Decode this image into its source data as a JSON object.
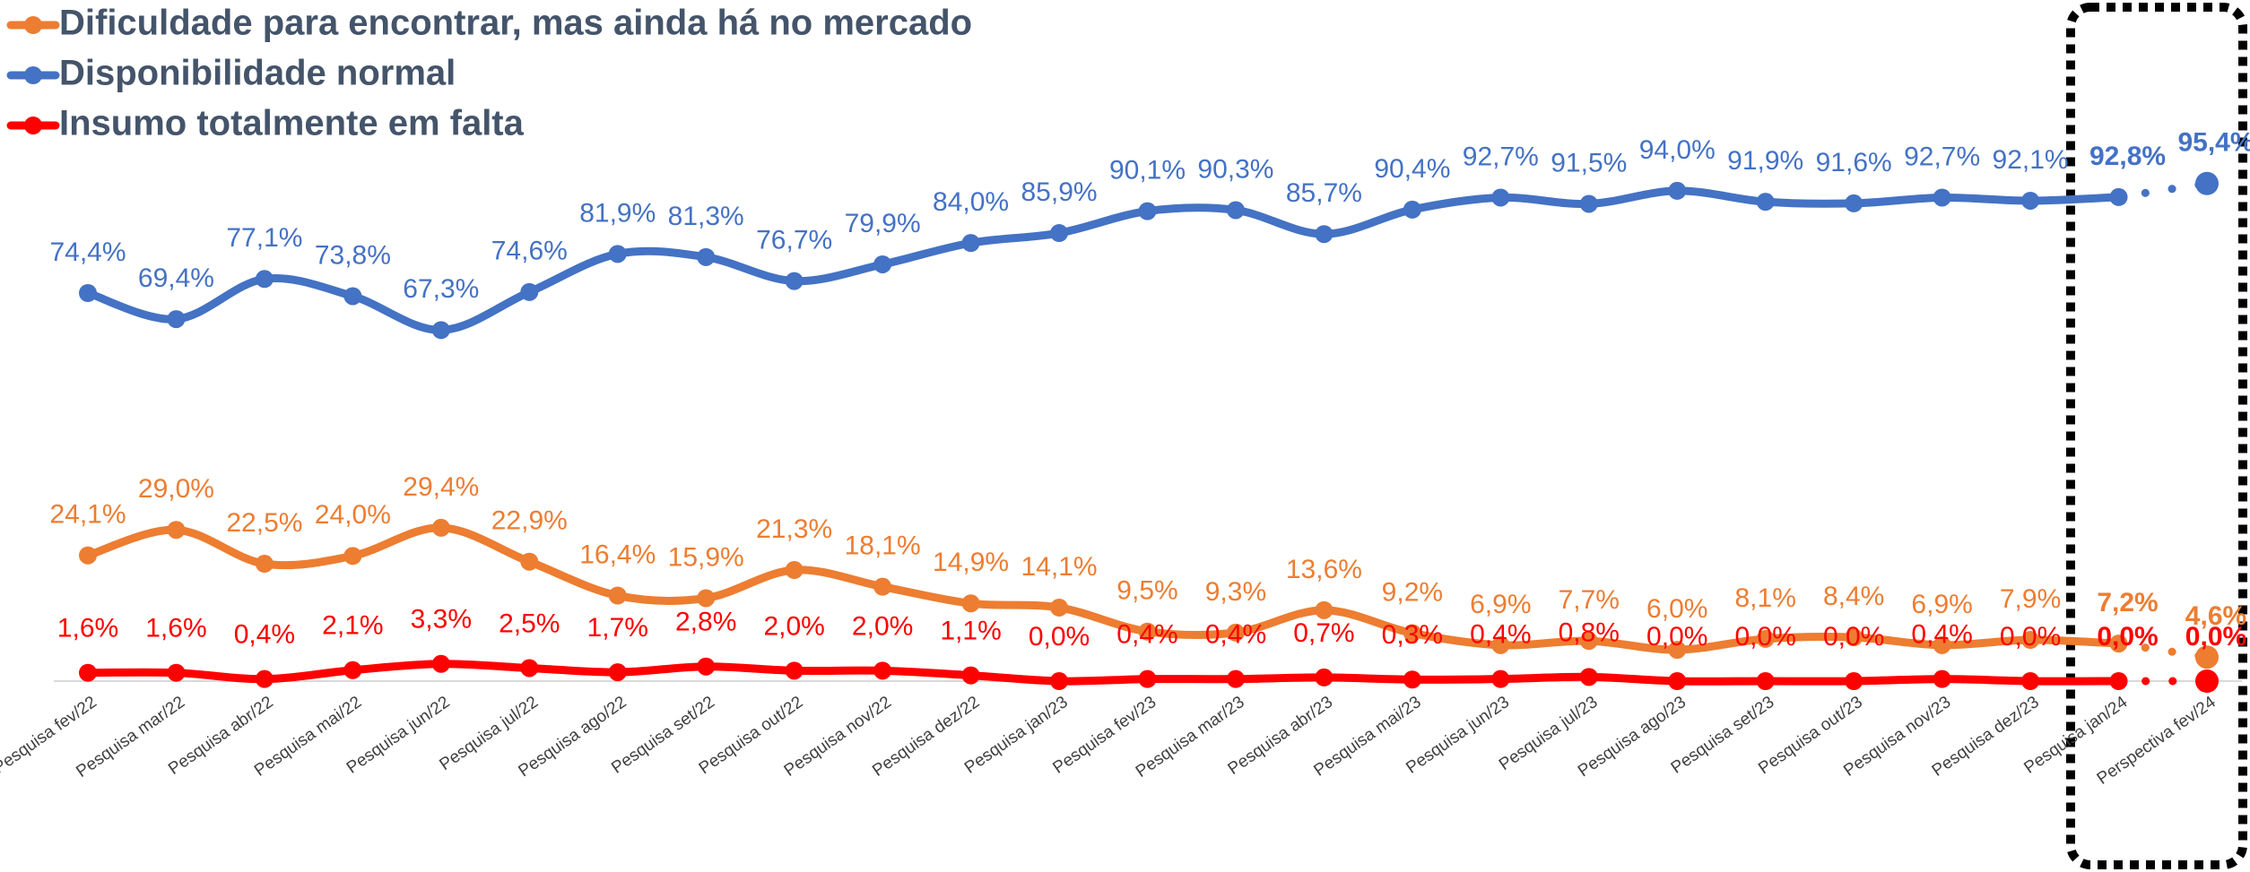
{
  "chart_data": {
    "type": "line",
    "categories": [
      "Pesquisa fev/22",
      "Pesquisa mar/22",
      "Pesquisa abr/22",
      "Pesquisa mai/22",
      "Pesquisa jun/22",
      "Pesquisa jul/22",
      "Pesquisa ago/22",
      "Pesquisa set/22",
      "Pesquisa out/22",
      "Pesquisa nov/22",
      "Pesquisa dez/22",
      "Pesquisa jan/23",
      "Pesquisa fev/23",
      "Pesquisa mar/23",
      "Pesquisa abr/23",
      "Pesquisa mai/23",
      "Pesquisa jun/23",
      "Pesquisa jul/23",
      "Pesquisa ago/23",
      "Pesquisa set/23",
      "Pesquisa out/23",
      "Pesquisa nov/23",
      "Pesquisa dez/23",
      "Pesquisa jan/24",
      "Perspectiva fev/24"
    ],
    "series": [
      {
        "name": "Dificuldade para encontrar, mas ainda há no mercado",
        "color": "#ed7d31",
        "values": [
          24.1,
          29.0,
          22.5,
          24.0,
          29.4,
          22.9,
          16.4,
          15.9,
          21.3,
          18.1,
          14.9,
          14.1,
          9.5,
          9.3,
          13.6,
          9.2,
          6.9,
          7.7,
          6.0,
          8.1,
          8.4,
          6.9,
          7.9,
          7.2,
          4.6
        ],
        "value_labels": [
          "24,1%",
          "29,0%",
          "22,5%",
          "24,0%",
          "29,4%",
          "22,9%",
          "16,4%",
          "15,9%",
          "21,3%",
          "18,1%",
          "14,9%",
          "14,1%",
          "9,5%",
          "9,3%",
          "13,6%",
          "9,2%",
          "6,9%",
          "7,7%",
          "6,0%",
          "8,1%",
          "8,4%",
          "6,9%",
          "7,9%",
          "7,2%",
          "4,6%"
        ]
      },
      {
        "name": "Disponibilidade normal",
        "color": "#4472c4",
        "values": [
          74.4,
          69.4,
          77.1,
          73.8,
          67.3,
          74.6,
          81.9,
          81.3,
          76.7,
          79.9,
          84.0,
          85.9,
          90.1,
          90.3,
          85.7,
          90.4,
          92.7,
          91.5,
          94.0,
          91.9,
          91.6,
          92.7,
          92.1,
          92.8,
          95.4
        ],
        "value_labels": [
          "74,4%",
          "69,4%",
          "77,1%",
          "73,8%",
          "67,3%",
          "74,6%",
          "81,9%",
          "81,3%",
          "76,7%",
          "79,9%",
          "84,0%",
          "85,9%",
          "90,1%",
          "90,3%",
          "85,7%",
          "90,4%",
          "92,7%",
          "91,5%",
          "94,0%",
          "91,9%",
          "91,6%",
          "92,7%",
          "92,1%",
          "92,8%",
          "95,4%"
        ]
      },
      {
        "name": "Insumo totalmente em falta",
        "color": "#ff0000",
        "values": [
          1.6,
          1.6,
          0.4,
          2.1,
          3.3,
          2.5,
          1.7,
          2.8,
          2.0,
          2.0,
          1.1,
          0.0,
          0.4,
          0.4,
          0.7,
          0.3,
          0.4,
          0.8,
          0.0,
          0.0,
          0.0,
          0.4,
          0.0,
          0.0,
          0.0
        ],
        "value_labels": [
          "1,6%",
          "1,6%",
          "0,4%",
          "2,1%",
          "3,3%",
          "2,5%",
          "1,7%",
          "2,8%",
          "2,0%",
          "2,0%",
          "1,1%",
          "0,0%",
          "0,4%",
          "0,4%",
          "0,7%",
          "0,3%",
          "0,4%",
          "0,8%",
          "0,0%",
          "0,0%",
          "0,0%",
          "0,4%",
          "0,0%",
          "0,0%",
          "0,0%"
        ]
      }
    ],
    "ylim": [
      0,
      100
    ]
  }
}
